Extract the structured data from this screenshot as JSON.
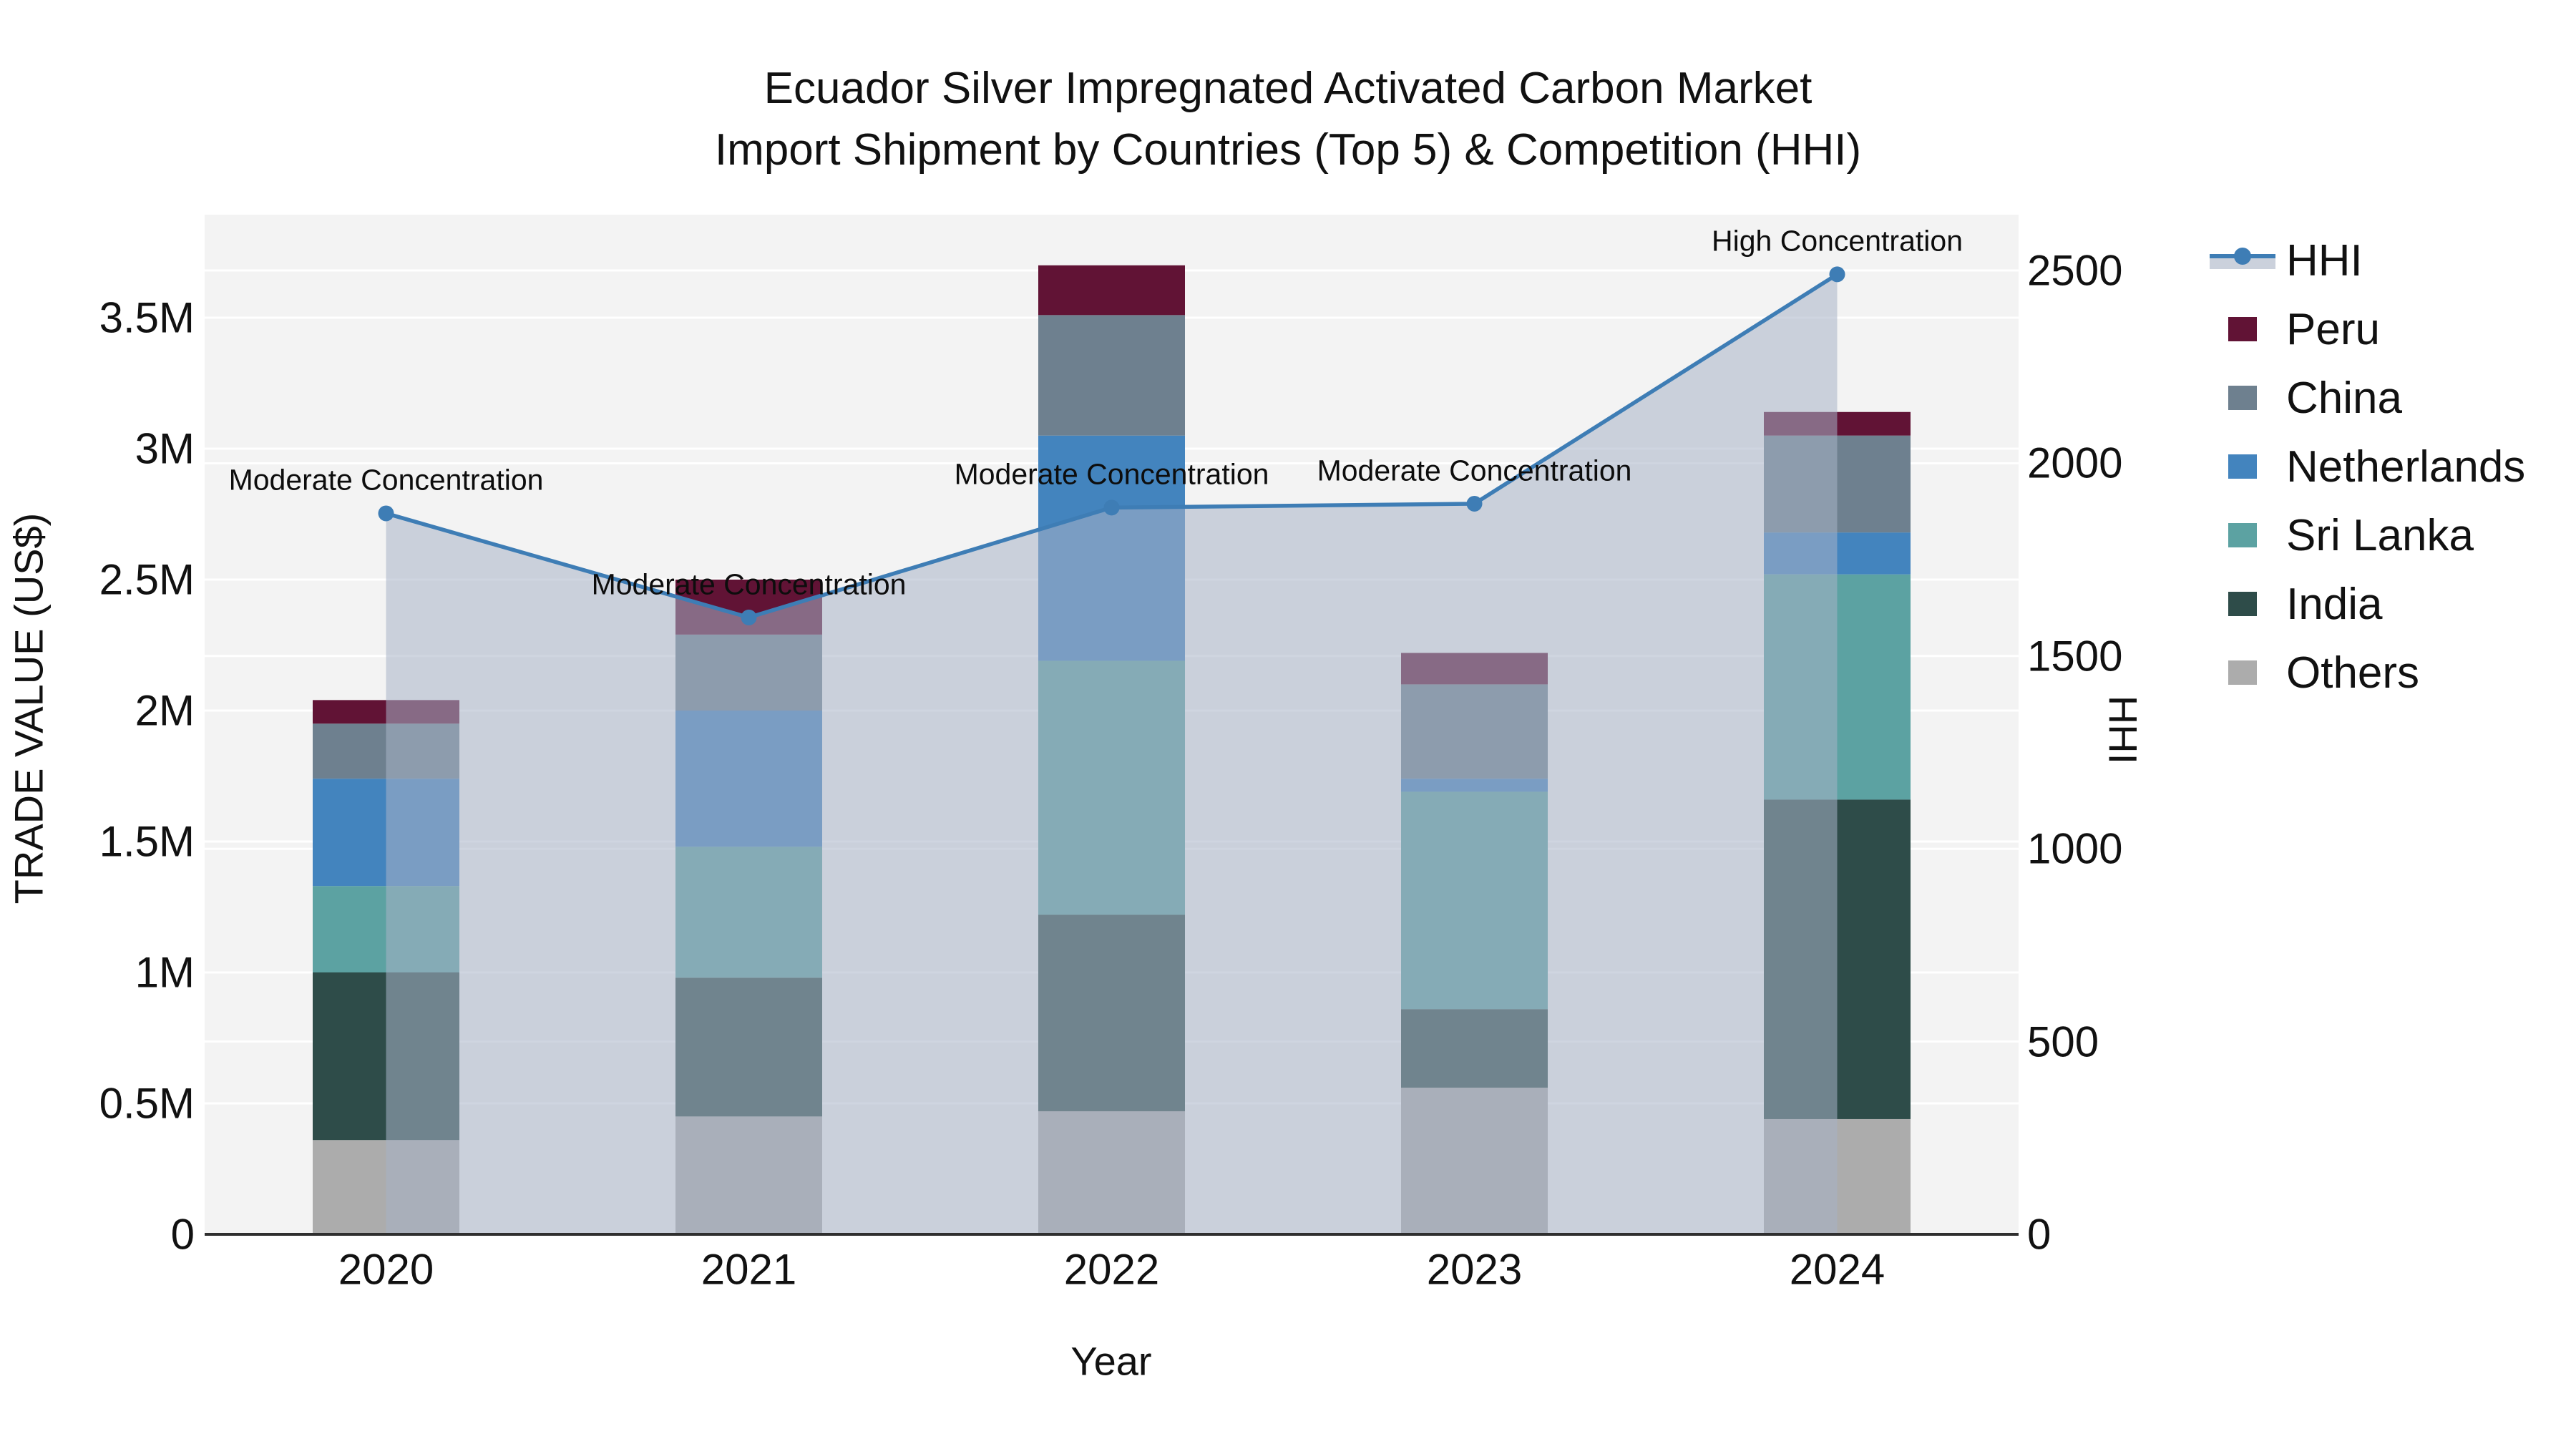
{
  "chart_data": {
    "type": "bar",
    "subtype": "stacked-bars-with-line-area-overlay",
    "title": {
      "line1": "Ecuador Silver Impregnated Activated Carbon Market",
      "line2": "Import Shipment by Countries (Top 5) & Competition (HHI)"
    },
    "xlabel": "Year",
    "ylabel_left": "TRADE VALUE (US$)",
    "ylabel_right": "HHI",
    "categories": [
      "2020",
      "2021",
      "2022",
      "2023",
      "2024"
    ],
    "value_unit": "million US$",
    "series": [
      {
        "name": "Others",
        "color": "#ACACAC",
        "values": [
          0.36,
          0.45,
          0.47,
          0.56,
          0.44
        ]
      },
      {
        "name": "India",
        "color": "#2E4C49",
        "values": [
          0.64,
          0.53,
          0.75,
          0.3,
          1.22
        ]
      },
      {
        "name": "Sri Lanka",
        "color": "#5CA2A2",
        "values": [
          0.33,
          0.5,
          0.97,
          0.83,
          0.86
        ]
      },
      {
        "name": "Netherlands",
        "color": "#4384BE",
        "values": [
          0.41,
          0.52,
          0.86,
          0.05,
          0.16
        ]
      },
      {
        "name": "China",
        "color": "#6E808F",
        "values": [
          0.21,
          0.29,
          0.46,
          0.36,
          0.37
        ]
      },
      {
        "name": "Peru",
        "color": "#611335",
        "values": [
          0.09,
          0.21,
          0.19,
          0.12,
          0.09
        ]
      }
    ],
    "hhi": {
      "name": "HHI",
      "color": "#3E7DB5",
      "area_color": "rgba(167,178,198,0.55)",
      "values": [
        1870,
        1600,
        1885,
        1895,
        2490
      ]
    },
    "annotations": [
      "Moderate Concentration",
      "Moderate Concentration",
      "Moderate Concentration",
      "Moderate Concentration",
      "High Concentration"
    ],
    "y_left": {
      "tick_labels": [
        "0",
        "0.5M",
        "1M",
        "1.5M",
        "2M",
        "2.5M",
        "3M",
        "3.5M"
      ],
      "tick_values": [
        0,
        0.5,
        1,
        1.5,
        2,
        2.5,
        3,
        3.5
      ],
      "range": [
        0,
        3.89
      ]
    },
    "y_right": {
      "tick_labels": [
        "0",
        "500",
        "1000",
        "1500",
        "2000",
        "2500"
      ],
      "tick_values": [
        0,
        500,
        1000,
        1500,
        2000,
        2500
      ],
      "range": [
        0,
        2645
      ]
    },
    "legend": {
      "items": [
        "HHI",
        "Peru",
        "China",
        "Netherlands",
        "Sri Lanka",
        "India",
        "Others"
      ],
      "position": "right"
    },
    "grid": true,
    "plot_background": "#F3F3F3",
    "gridline_color": "#FFFFFF",
    "axisline_color": "#2F2F2F"
  }
}
